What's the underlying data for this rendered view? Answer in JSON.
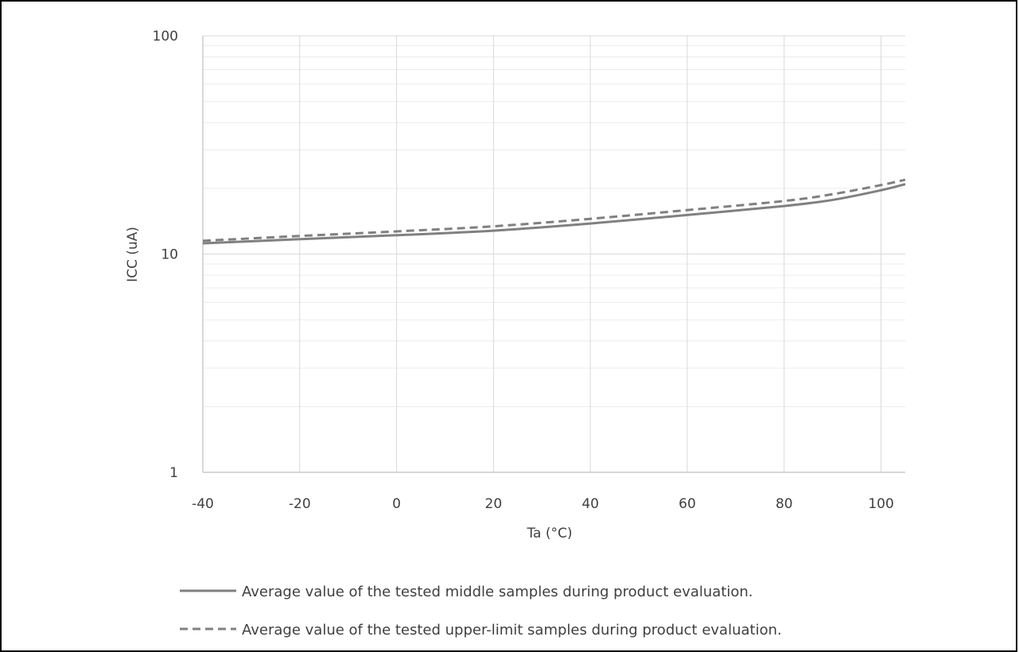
{
  "chart_data": {
    "type": "line",
    "title": "",
    "xlabel": "Ta (°C)",
    "ylabel": "ICC (uA)",
    "xlim": [
      -40,
      105
    ],
    "ylim": [
      1,
      100
    ],
    "y_scale": "log",
    "x_ticks": [
      -40,
      -20,
      0,
      20,
      40,
      60,
      80,
      100
    ],
    "x_tick_labels": [
      "-40",
      "-20",
      "0",
      "20",
      "40",
      "60",
      "80",
      "100"
    ],
    "y_ticks": [
      1,
      10,
      100
    ],
    "y_tick_labels": [
      "1",
      "10",
      "100"
    ],
    "grid": true,
    "legend_position": "bottom",
    "series": [
      {
        "name": "Average value of the tested middle samples during product evaluation.",
        "style": "solid",
        "color": "#808080",
        "x": [
          -40,
          -20,
          0,
          20,
          40,
          60,
          80,
          90,
          100,
          105
        ],
        "y": [
          11.2,
          11.7,
          12.2,
          12.8,
          13.8,
          15.1,
          16.6,
          17.7,
          19.6,
          20.9
        ]
      },
      {
        "name": "Average value of the tested upper-limit samples during product evaluation.",
        "style": "dashed",
        "color": "#808080",
        "x": [
          -40,
          -20,
          0,
          20,
          40,
          60,
          80,
          90,
          100,
          105
        ],
        "y": [
          11.5,
          12.1,
          12.7,
          13.4,
          14.5,
          15.9,
          17.5,
          18.8,
          20.7,
          21.9
        ]
      }
    ]
  }
}
